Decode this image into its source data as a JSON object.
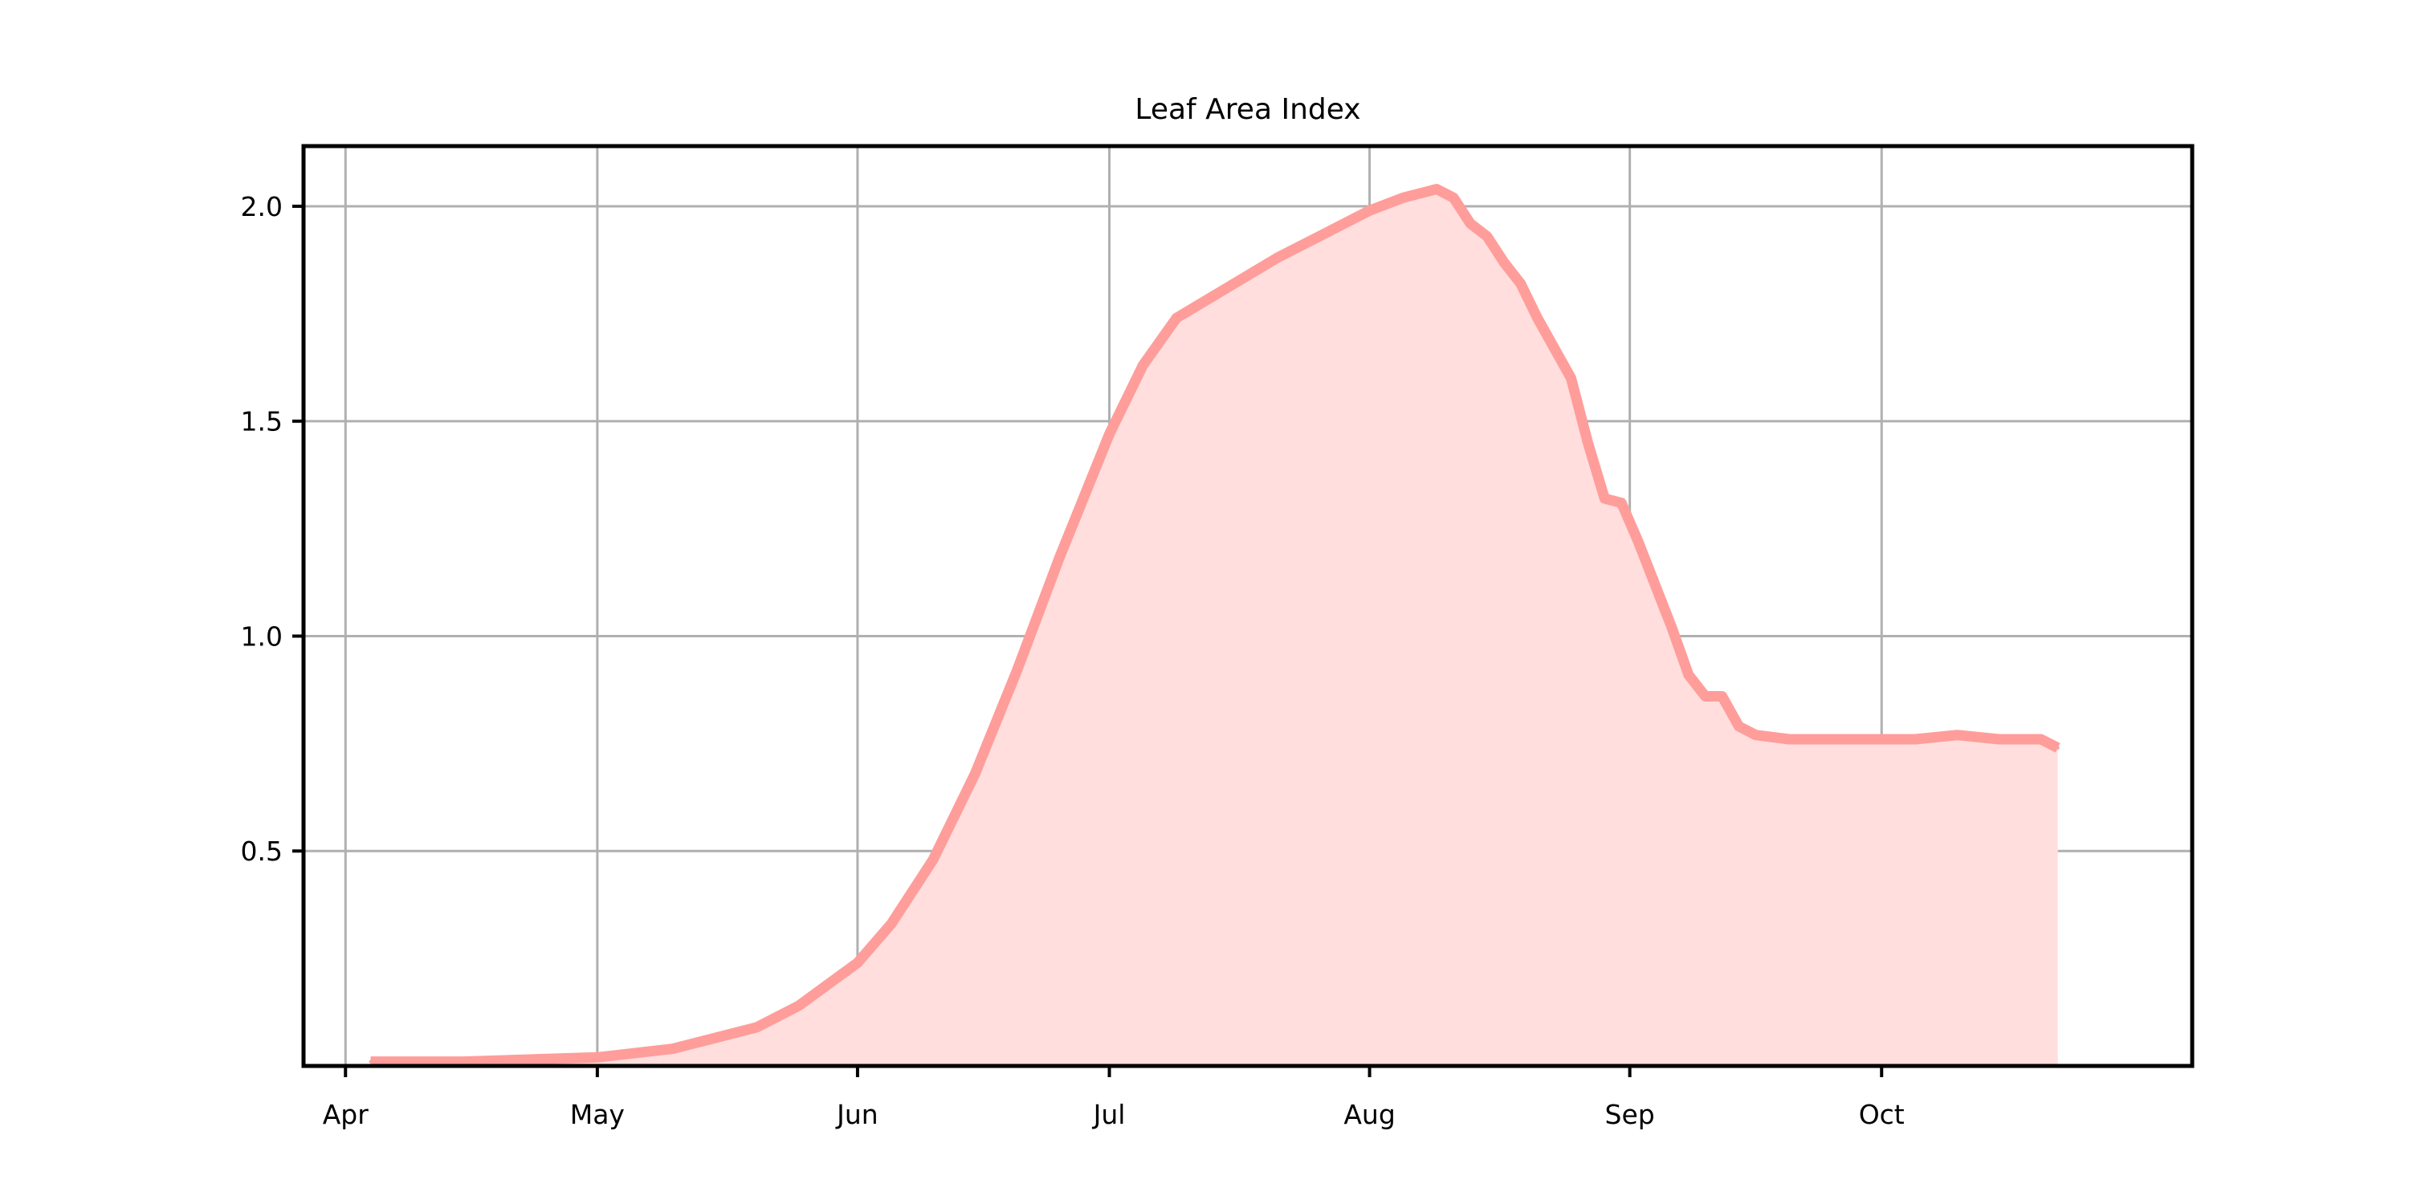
{
  "chart_data": {
    "type": "area",
    "title": "Leaf Area Index",
    "xlabel": "",
    "ylabel": "",
    "x_axis_type": "date",
    "xlim": [
      "2022-03-27",
      "2022-11-07"
    ],
    "ylim": [
      0,
      2.14
    ],
    "grid": true,
    "legend": null,
    "x_ticks": [
      {
        "date": "2022-04-01",
        "label": "Apr"
      },
      {
        "date": "2022-05-01",
        "label": "May"
      },
      {
        "date": "2022-06-01",
        "label": "Jun"
      },
      {
        "date": "2022-07-01",
        "label": "Jul"
      },
      {
        "date": "2022-08-01",
        "label": "Aug"
      },
      {
        "date": "2022-09-01",
        "label": "Sep"
      },
      {
        "date": "2022-10-01",
        "label": "Oct"
      }
    ],
    "y_ticks": [
      {
        "value": 0.5,
        "label": "0.5"
      },
      {
        "value": 1.0,
        "label": "1.0"
      },
      {
        "value": 1.5,
        "label": "1.5"
      },
      {
        "value": 2.0,
        "label": "2.0"
      }
    ],
    "series": [
      {
        "color": "#ff9d9a",
        "fill_color": "#ffdedd",
        "x": [
          "2022-04-04",
          "2022-04-15",
          "2022-05-01",
          "2022-05-10",
          "2022-05-20",
          "2022-05-25",
          "2022-06-01",
          "2022-06-05",
          "2022-06-10",
          "2022-06-15",
          "2022-06-20",
          "2022-06-25",
          "2022-07-01",
          "2022-07-05",
          "2022-07-09",
          "2022-07-15",
          "2022-07-21",
          "2022-07-27",
          "2022-08-01",
          "2022-08-05",
          "2022-08-09",
          "2022-08-11",
          "2022-08-13",
          "2022-08-15",
          "2022-08-17",
          "2022-08-19",
          "2022-08-21",
          "2022-08-25",
          "2022-08-27",
          "2022-08-29",
          "2022-08-31",
          "2022-09-02",
          "2022-09-04",
          "2022-09-06",
          "2022-09-08",
          "2022-09-10",
          "2022-09-12",
          "2022-09-14",
          "2022-09-16",
          "2022-09-20",
          "2022-09-25",
          "2022-10-01",
          "2022-10-05",
          "2022-10-10",
          "2022-10-15",
          "2022-10-20",
          "2022-10-22"
        ],
        "y": [
          0.01,
          0.01,
          0.02,
          0.04,
          0.09,
          0.14,
          0.24,
          0.33,
          0.48,
          0.68,
          0.92,
          1.18,
          1.47,
          1.63,
          1.74,
          1.81,
          1.88,
          1.94,
          1.99,
          2.02,
          2.04,
          2.02,
          1.96,
          1.93,
          1.87,
          1.82,
          1.74,
          1.6,
          1.45,
          1.32,
          1.31,
          1.22,
          1.12,
          1.02,
          0.91,
          0.86,
          0.86,
          0.79,
          0.77,
          0.76,
          0.76,
          0.76,
          0.76,
          0.77,
          0.76,
          0.76,
          0.74
        ]
      }
    ]
  }
}
